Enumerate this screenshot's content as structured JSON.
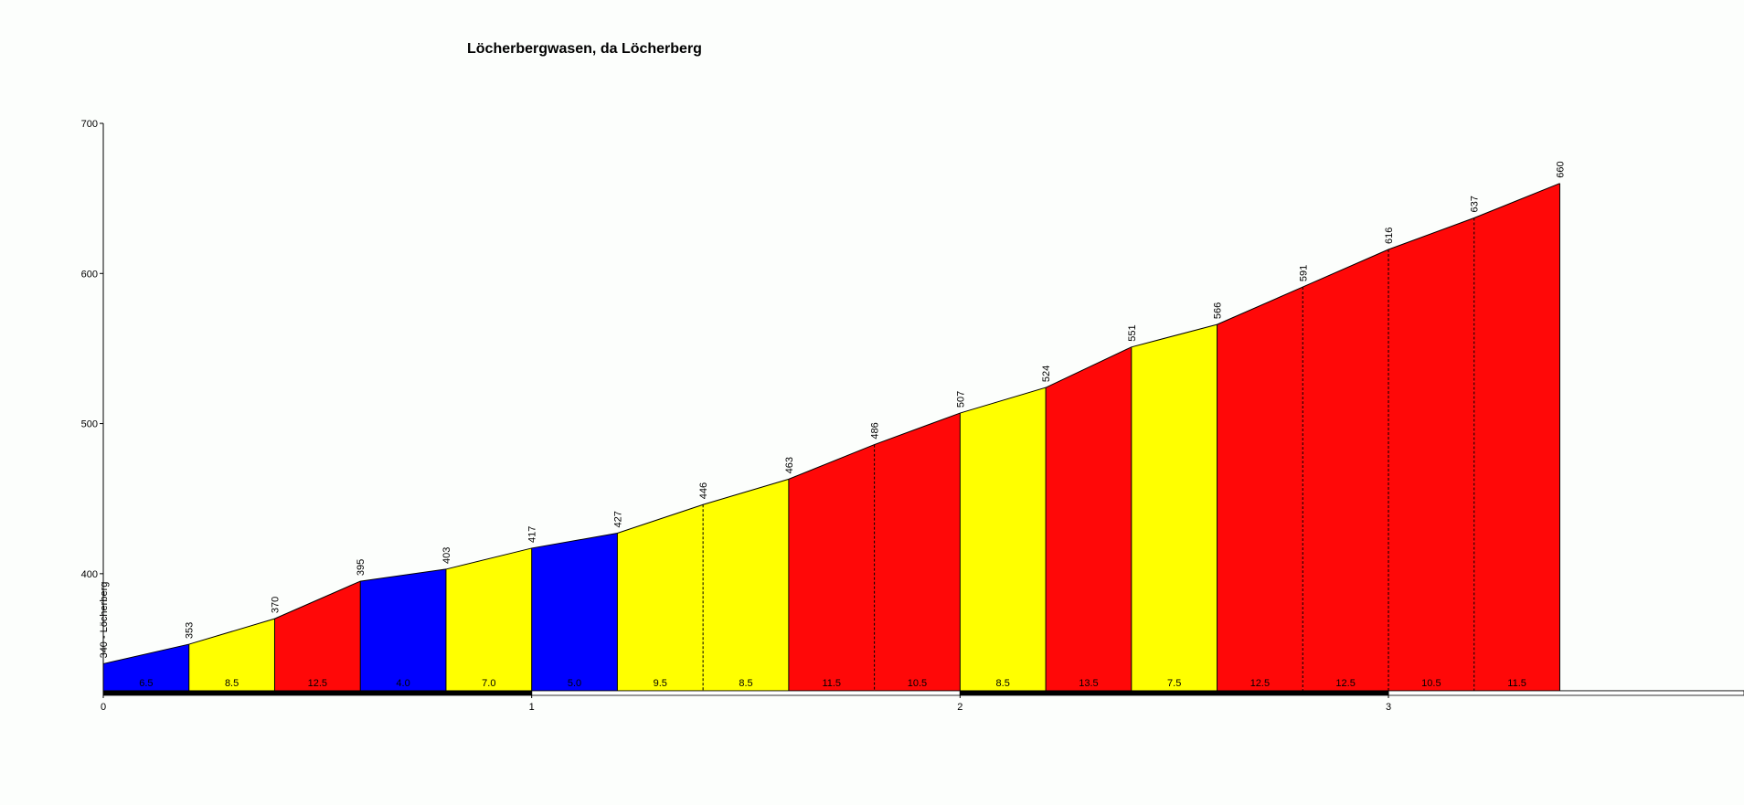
{
  "chart_data": {
    "type": "climb-profile",
    "title": "Löcherbergwasen, da Löcherberg",
    "x": [
      0,
      0.2,
      0.4,
      0.6,
      0.8,
      1.0,
      1.2,
      1.4,
      1.6,
      1.8,
      2.0,
      2.2,
      2.4,
      2.6,
      2.8,
      3.0,
      3.2,
      3.4
    ],
    "values": [
      340,
      353,
      370,
      395,
      403,
      417,
      427,
      446,
      463,
      486,
      507,
      524,
      551,
      566,
      591,
      616,
      637,
      660
    ],
    "value_labels": [
      "340 - Löcherberg",
      "353",
      "370",
      "395",
      "403",
      "417",
      "427",
      "446",
      "463",
      "486",
      "507",
      "524",
      "551",
      "566",
      "591",
      "616",
      "637",
      "660"
    ],
    "segment_labels": [
      "6.5",
      "8.5",
      "12.5",
      "4.0",
      "7.0",
      "5.0",
      "9.5",
      "8.5",
      "11.5",
      "10.5",
      "8.5",
      "13.5",
      "7.5",
      "12.5",
      "12.5",
      "10.5",
      "11.5"
    ],
    "segment_colors": [
      "#0000ff",
      "#ffff00",
      "#ff0808",
      "#0000ff",
      "#ffff00",
      "#0000ff",
      "#ffff00",
      "#ffff00",
      "#ff0808",
      "#ff0808",
      "#ffff00",
      "#ff0808",
      "#ffff00",
      "#ff0808",
      "#ff0808",
      "#ff0808",
      "#ff0808"
    ],
    "xlim": [
      0,
      3.83
    ],
    "ylim": [
      322,
      700
    ],
    "xticks": [
      0,
      1,
      2,
      3
    ],
    "yticks": [
      400,
      500,
      600,
      700
    ]
  }
}
